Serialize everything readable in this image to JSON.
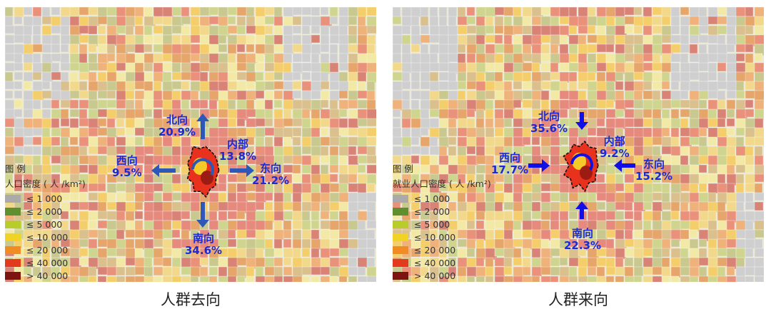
{
  "maps": [
    {
      "caption": "人群去向",
      "directions": {
        "north": {
          "label": "北向",
          "pct": "20.9%"
        },
        "inner": {
          "label": "内部",
          "pct": "13.8%"
        },
        "west": {
          "label": "西向",
          "pct": "9.5%"
        },
        "east": {
          "label": "东向",
          "pct": "21.2%"
        },
        "south": {
          "label": "南向",
          "pct": "34.6%"
        }
      },
      "legend": {
        "title": "图 例",
        "subtitle": "人口密度 ( 人 /km²)",
        "classes": [
          {
            "label": "≤ 1 000",
            "color": "#aaaaaa"
          },
          {
            "label": "≤ 2 000",
            "color": "#5f8f2e"
          },
          {
            "label": "≤ 5 000",
            "color": "#b8cc2c"
          },
          {
            "label": "≤ 10 000",
            "color": "#f1d326"
          },
          {
            "label": "≤ 20 000",
            "color": "#f08c23"
          },
          {
            "label": "≤ 40 000",
            "color": "#e33a1e"
          },
          {
            "label": "> 40 000",
            "color": "#7d1410"
          }
        ]
      },
      "arrow_direction": "outward"
    },
    {
      "caption": "人群来向",
      "directions": {
        "north": {
          "label": "北向",
          "pct": "35.6%"
        },
        "inner": {
          "label": "内部",
          "pct": "9.2%"
        },
        "west": {
          "label": "西向",
          "pct": "17.7%"
        },
        "east": {
          "label": "东向",
          "pct": "15.2%"
        },
        "south": {
          "label": "南向",
          "pct": "22.3%"
        }
      },
      "legend": {
        "title": "图 例",
        "subtitle": "就业人口密度 ( 人 /km²)",
        "classes": [
          {
            "label": "≤ 1 000",
            "color": "#aaaaaa"
          },
          {
            "label": "≤ 2 000",
            "color": "#5f8f2e"
          },
          {
            "label": "≤ 5 000",
            "color": "#b8cc2c"
          },
          {
            "label": "≤ 10 000",
            "color": "#f1d326"
          },
          {
            "label": "≤ 20 000",
            "color": "#f08c23"
          },
          {
            "label": "≤ 40 000",
            "color": "#e33a1e"
          },
          {
            "label": "> 40 000",
            "color": "#7d1410"
          }
        ]
      },
      "arrow_direction": "inward"
    }
  ],
  "colors": {
    "arrow_left_map": "#2e58b8",
    "arrow_right_map": "#1010e6",
    "label_text": "#1a2ad6"
  }
}
